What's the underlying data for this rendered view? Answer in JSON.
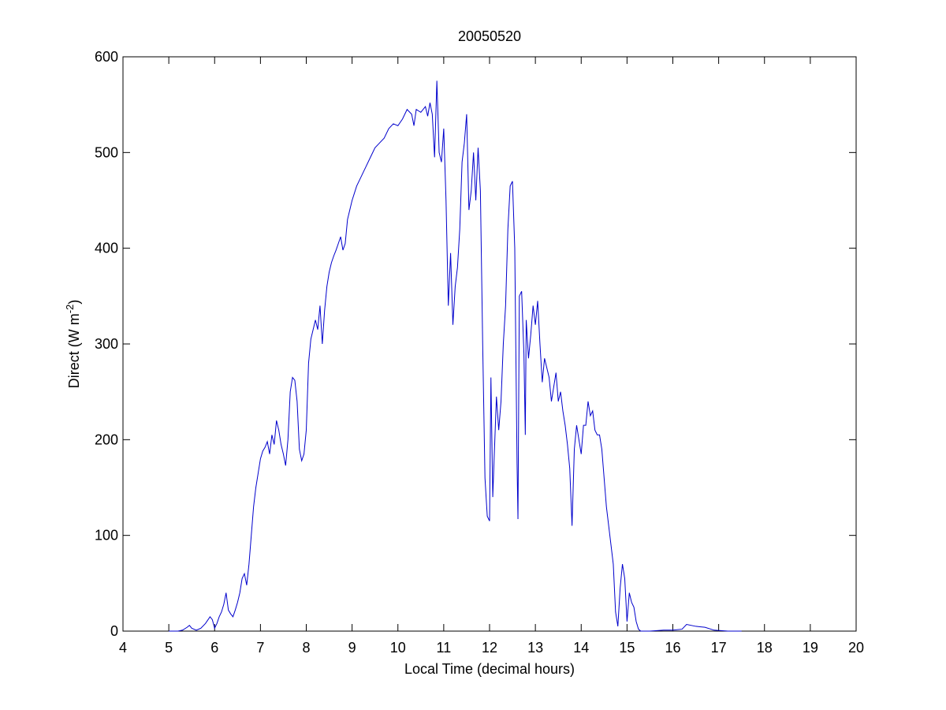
{
  "chart_data": {
    "type": "line",
    "title": "20050520",
    "xlabel": "Local Time (decimal hours)",
    "ylabel": [
      "Direct (W m",
      "-2",
      ")"
    ],
    "xlim": [
      4,
      20
    ],
    "xticks": [
      4,
      5,
      6,
      7,
      8,
      9,
      10,
      11,
      12,
      13,
      14,
      15,
      16,
      17,
      18,
      19,
      20
    ],
    "ylim": [
      0,
      600
    ],
    "yticks": [
      0,
      100,
      200,
      300,
      400,
      500,
      600
    ],
    "grid": false,
    "series": [
      {
        "color": "#0000cc",
        "x": [
          5.0,
          5.2,
          5.3,
          5.4,
          5.45,
          5.5,
          5.6,
          5.7,
          5.8,
          5.9,
          5.95,
          6.0,
          6.05,
          6.1,
          6.15,
          6.2,
          6.25,
          6.3,
          6.35,
          6.4,
          6.45,
          6.5,
          6.55,
          6.6,
          6.65,
          6.7,
          6.75,
          6.8,
          6.85,
          6.9,
          6.95,
          7.0,
          7.05,
          7.1,
          7.15,
          7.2,
          7.25,
          7.3,
          7.35,
          7.4,
          7.45,
          7.5,
          7.55,
          7.6,
          7.65,
          7.7,
          7.75,
          7.8,
          7.85,
          7.9,
          7.95,
          8.0,
          8.05,
          8.1,
          8.15,
          8.2,
          8.25,
          8.3,
          8.35,
          8.4,
          8.45,
          8.5,
          8.55,
          8.6,
          8.65,
          8.7,
          8.75,
          8.8,
          8.85,
          8.9,
          8.95,
          9.0,
          9.1,
          9.2,
          9.3,
          9.4,
          9.5,
          9.6,
          9.7,
          9.8,
          9.9,
          10.0,
          10.1,
          10.2,
          10.3,
          10.35,
          10.4,
          10.5,
          10.6,
          10.65,
          10.7,
          10.75,
          10.8,
          10.85,
          10.9,
          10.95,
          11.0,
          11.05,
          11.1,
          11.15,
          11.2,
          11.25,
          11.3,
          11.35,
          11.4,
          11.45,
          11.5,
          11.55,
          11.6,
          11.65,
          11.7,
          11.75,
          11.8,
          11.85,
          11.9,
          11.95,
          12.0,
          12.03,
          12.07,
          12.1,
          12.15,
          12.2,
          12.25,
          12.3,
          12.35,
          12.4,
          12.45,
          12.5,
          12.55,
          12.6,
          12.62,
          12.65,
          12.7,
          12.75,
          12.78,
          12.8,
          12.85,
          12.9,
          12.95,
          13.0,
          13.05,
          13.1,
          13.15,
          13.2,
          13.3,
          13.35,
          13.4,
          13.45,
          13.5,
          13.55,
          13.6,
          13.65,
          13.7,
          13.75,
          13.8,
          13.85,
          13.9,
          13.95,
          14.0,
          14.05,
          14.1,
          14.15,
          14.2,
          14.25,
          14.3,
          14.35,
          14.4,
          14.45,
          14.5,
          14.55,
          14.6,
          14.65,
          14.7,
          14.75,
          14.8,
          14.85,
          14.9,
          14.95,
          15.0,
          15.05,
          15.1,
          15.15,
          15.2,
          15.25,
          15.3,
          15.5,
          15.8,
          16.0,
          16.2,
          16.3,
          16.5,
          16.7,
          16.9,
          17.2,
          17.5
        ],
        "values": [
          0,
          0,
          1,
          4,
          6,
          3,
          1,
          3,
          8,
          15,
          12,
          3,
          8,
          15,
          20,
          28,
          40,
          22,
          18,
          15,
          22,
          30,
          40,
          55,
          60,
          48,
          70,
          100,
          130,
          150,
          165,
          180,
          188,
          192,
          198,
          185,
          205,
          195,
          220,
          210,
          195,
          185,
          173,
          200,
          250,
          265,
          262,
          240,
          190,
          178,
          185,
          210,
          280,
          305,
          315,
          325,
          315,
          340,
          300,
          335,
          360,
          375,
          385,
          392,
          398,
          405,
          412,
          398,
          405,
          430,
          440,
          450,
          465,
          475,
          485,
          495,
          505,
          510,
          515,
          525,
          530,
          528,
          535,
          545,
          540,
          528,
          545,
          542,
          548,
          538,
          552,
          540,
          495,
          575,
          500,
          490,
          525,
          450,
          340,
          395,
          320,
          360,
          380,
          420,
          490,
          510,
          540,
          440,
          460,
          500,
          450,
          505,
          460,
          300,
          160,
          120,
          115,
          265,
          140,
          180,
          245,
          210,
          240,
          300,
          340,
          420,
          465,
          470,
          400,
          175,
          117,
          350,
          355,
          290,
          205,
          325,
          285,
          310,
          340,
          320,
          345,
          300,
          260,
          285,
          265,
          240,
          255,
          270,
          240,
          250,
          230,
          215,
          195,
          170,
          110,
          190,
          215,
          200,
          185,
          215,
          215,
          240,
          225,
          230,
          210,
          205,
          205,
          190,
          160,
          130,
          110,
          90,
          70,
          20,
          5,
          45,
          70,
          55,
          10,
          40,
          30,
          25,
          10,
          2,
          0,
          0,
          1,
          1,
          2,
          7,
          5,
          4,
          1,
          0,
          0
        ]
      }
    ]
  }
}
